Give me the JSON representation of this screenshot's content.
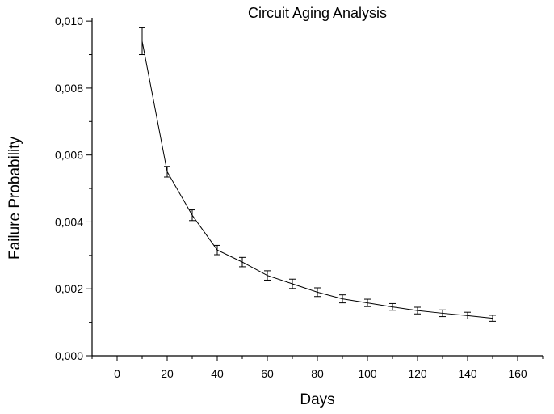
{
  "chart_data": {
    "type": "line",
    "title": "Circuit Aging Analysis",
    "xlabel": "Days",
    "ylabel": "Failure Probability",
    "xlim": [
      -10,
      170
    ],
    "ylim": [
      0,
      0.0101
    ],
    "x_ticks": [
      0,
      20,
      40,
      60,
      80,
      100,
      120,
      140,
      160
    ],
    "x_tick_labels": [
      "0",
      "20",
      "40",
      "60",
      "80",
      "100",
      "120",
      "140",
      "160"
    ],
    "y_ticks": [
      0,
      0.002,
      0.004,
      0.006,
      0.008,
      0.01
    ],
    "y_tick_labels": [
      "0,000",
      "0,002",
      "0,004",
      "0,006",
      "0,008",
      "0,010"
    ],
    "grid": false,
    "legend": "none",
    "series": [
      {
        "x": [
          10,
          20,
          30,
          40,
          50,
          60,
          70,
          80,
          90,
          100,
          110,
          120,
          130,
          140,
          150
        ],
        "y": [
          0.0094,
          0.0055,
          0.0042,
          0.00316,
          0.0028,
          0.0024,
          0.00215,
          0.0019,
          0.0017,
          0.00158,
          0.00146,
          0.00135,
          0.00127,
          0.0012,
          0.00112
        ],
        "error": [
          0.0004,
          0.00016,
          0.00016,
          0.00014,
          0.00014,
          0.00014,
          0.00014,
          0.00013,
          0.00012,
          0.00011,
          0.0001,
          0.0001,
          0.0001,
          0.0001,
          9e-05
        ],
        "color": "#000000"
      }
    ]
  }
}
